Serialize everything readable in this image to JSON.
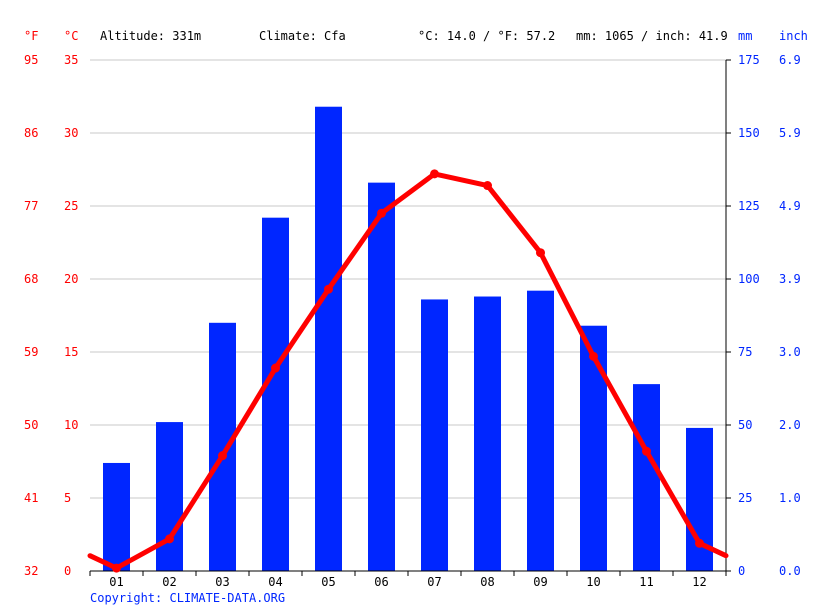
{
  "header": {
    "altitude": "Altitude: 331m",
    "climate": "Climate: Cfa",
    "avg_temp": "°C: 14.0 / °F: 57.2",
    "precip_total": "mm: 1065 / inch: 41.9"
  },
  "units": {
    "f": "°F",
    "c": "°C",
    "mm": "mm",
    "inch": "inch"
  },
  "axes": {
    "f_ticks": [
      "32",
      "41",
      "50",
      "59",
      "68",
      "77",
      "86",
      "95"
    ],
    "c_ticks": [
      "0",
      "5",
      "10",
      "15",
      "20",
      "25",
      "30",
      "35"
    ],
    "mm_ticks": [
      "0",
      "25",
      "50",
      "75",
      "100",
      "125",
      "150",
      "175"
    ],
    "inch_ticks": [
      "0.0",
      "1.0",
      "2.0",
      "3.0",
      "3.9",
      "4.9",
      "5.9",
      "6.9"
    ]
  },
  "chart_data": {
    "type": "bar",
    "categories": [
      "01",
      "02",
      "03",
      "04",
      "05",
      "06",
      "07",
      "08",
      "09",
      "10",
      "11",
      "12"
    ],
    "series": [
      {
        "kind": "bar",
        "unit": "mm",
        "color": "#0026ff",
        "values": [
          37,
          51,
          85,
          121,
          159,
          133,
          93,
          94,
          96,
          84,
          64,
          49
        ]
      },
      {
        "kind": "line",
        "unit": "°C",
        "color": "#ff0000",
        "values": [
          0.2,
          2.2,
          7.9,
          13.9,
          19.3,
          24.5,
          27.2,
          26.4,
          21.8,
          14.7,
          8.2,
          1.9
        ]
      }
    ],
    "temp_ylim": [
      0,
      35
    ],
    "precip_ylim": [
      0,
      175
    ],
    "grid": true
  },
  "copyright": "Copyright: CLIMATE-DATA.ORG",
  "colors": {
    "temp": "#ff0000",
    "precip": "#0026ff",
    "grid": "#c8c8c8"
  }
}
